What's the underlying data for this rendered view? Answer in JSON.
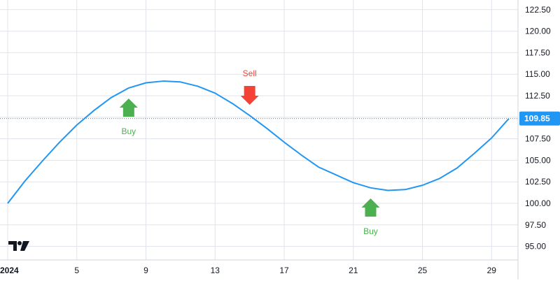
{
  "chart_data": {
    "type": "line",
    "x_labels": [
      {
        "label": "2024",
        "day": 1
      },
      {
        "label": "5",
        "day": 5
      },
      {
        "label": "9",
        "day": 9
      },
      {
        "label": "13",
        "day": 13
      },
      {
        "label": "17",
        "day": 17
      },
      {
        "label": "21",
        "day": 21
      },
      {
        "label": "25",
        "day": 25
      },
      {
        "label": "29",
        "day": 29
      }
    ],
    "y_ticks": [
      "95.00",
      "97.50",
      "100.00",
      "102.50",
      "105.00",
      "107.50",
      "110.00",
      "112.50",
      "115.00",
      "117.50",
      "120.00",
      "122.50"
    ],
    "ylim": [
      93.5,
      123.5
    ],
    "xlim": [
      1,
      30.6
    ],
    "series": [
      {
        "x": [
          1,
          2,
          3,
          4,
          5,
          6,
          7,
          8,
          9,
          10,
          11,
          12,
          13,
          14,
          15,
          16,
          17,
          18,
          19,
          20,
          21,
          22,
          23,
          24,
          25,
          26,
          27,
          28,
          29,
          30
        ],
        "values": [
          100.0,
          102.6,
          104.9,
          107.1,
          109.1,
          110.8,
          112.3,
          113.4,
          114.0,
          114.2,
          114.1,
          113.6,
          112.8,
          111.6,
          110.2,
          108.7,
          107.1,
          105.6,
          104.2,
          103.3,
          102.4,
          101.8,
          101.5,
          101.6,
          102.1,
          102.9,
          104.1,
          105.8,
          107.6,
          109.85
        ],
        "color": "#2196f3"
      }
    ],
    "last_price": {
      "label": "109.85",
      "value": 109.85,
      "color": "#2196f3"
    },
    "annotations": [
      {
        "text": "Buy",
        "day": 8,
        "direction": "up",
        "color": "#4caf50"
      },
      {
        "text": "Sell",
        "day": 15,
        "direction": "down",
        "color": "#f44336"
      },
      {
        "text": "Buy",
        "day": 22,
        "direction": "up",
        "color": "#4caf50"
      }
    ],
    "grid": true,
    "logo": "tradingview-logo"
  }
}
